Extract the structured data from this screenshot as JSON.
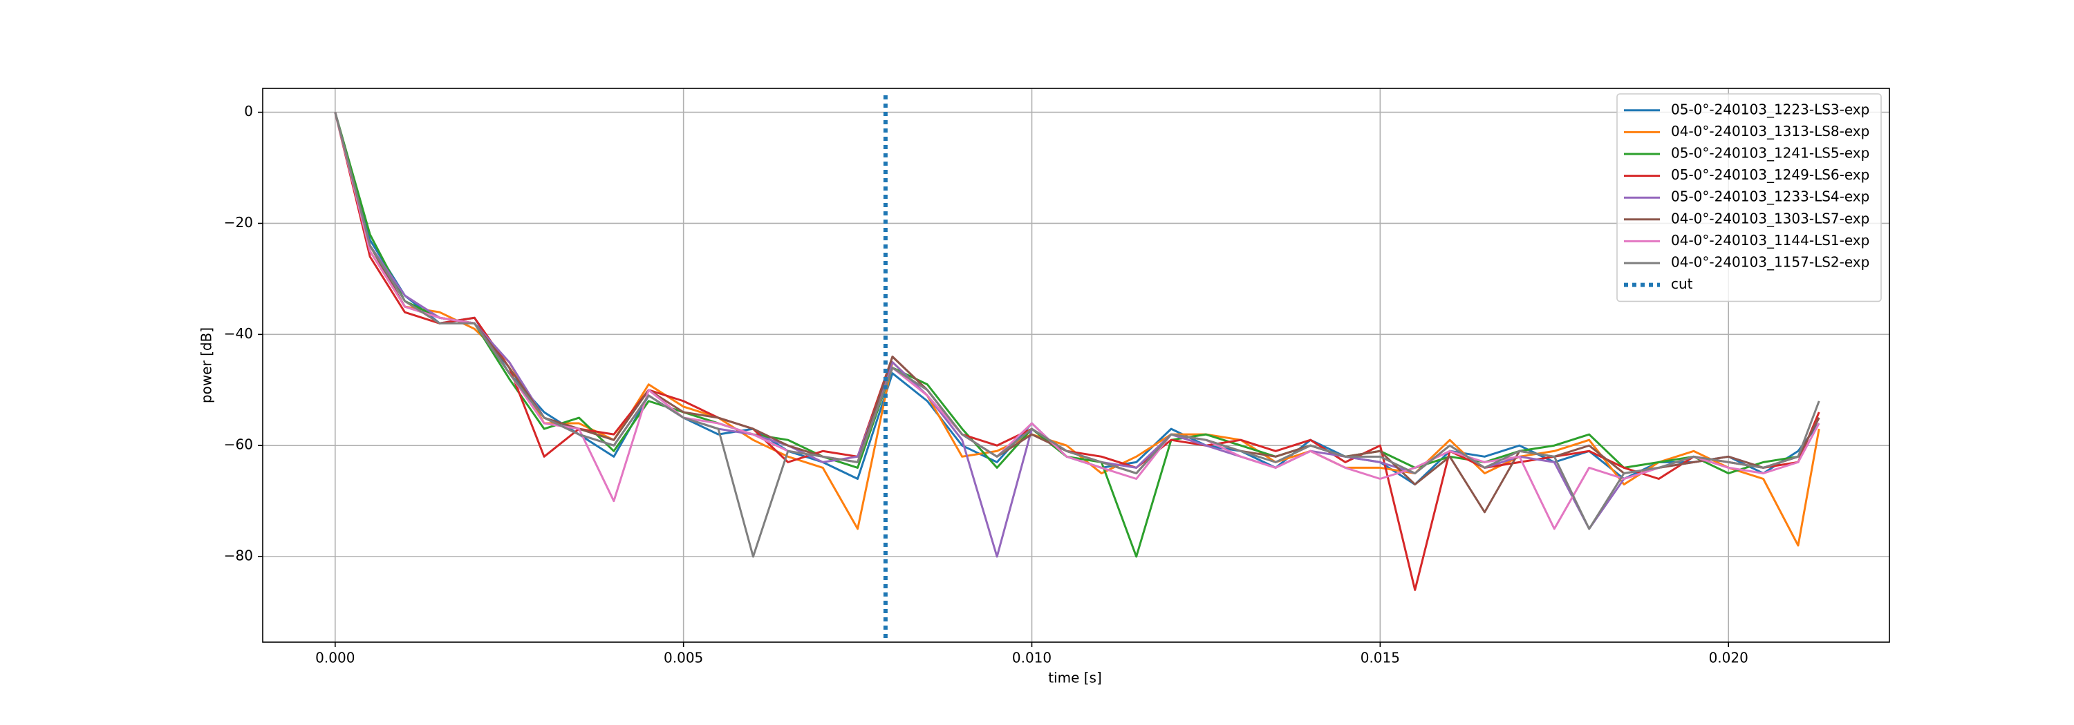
{
  "chart_data": {
    "type": "line",
    "xlabel": "time [s]",
    "ylabel": "power [dB]",
    "x": [
      0,
      0.0005,
      0.001,
      0.0015,
      0.002,
      0.0025,
      0.003,
      0.0035,
      0.004,
      0.0045,
      0.005,
      0.0055,
      0.006,
      0.0065,
      0.007,
      0.0075,
      0.008,
      0.0085,
      0.009,
      0.0095,
      0.01,
      0.0105,
      0.011,
      0.0115,
      0.012,
      0.0125,
      0.013,
      0.0135,
      0.014,
      0.0145,
      0.015,
      0.0155,
      0.016,
      0.0165,
      0.017,
      0.0175,
      0.018,
      0.0185,
      0.019,
      0.0195,
      0.02,
      0.0205,
      0.021,
      0.0213
    ],
    "series": [
      {
        "name": "05-0°-240103_1223-LS3-exp",
        "color": "#1f77b4",
        "values": [
          0,
          -23,
          -33,
          -38,
          -37,
          -47,
          -54,
          -58,
          -62,
          -51,
          -55,
          -58,
          -57,
          -61,
          -63,
          -66,
          -47,
          -52,
          -60,
          -63,
          -56,
          -62,
          -64,
          -63,
          -57,
          -60,
          -61,
          -64,
          -59,
          -62,
          -63,
          -67,
          -61,
          -62,
          -60,
          -63,
          -61,
          -66,
          -63,
          -63,
          -62,
          -65,
          -61,
          -56
        ]
      },
      {
        "name": "04-0°-240103_1313-LS8-exp",
        "color": "#ff7f0e",
        "values": [
          0,
          -25,
          -35,
          -36,
          -39,
          -45,
          -56,
          -56,
          -59,
          -49,
          -53,
          -55,
          -59,
          -62,
          -64,
          -75,
          -45,
          -51,
          -62,
          -61,
          -58,
          -60,
          -65,
          -62,
          -58,
          -58,
          -59,
          -63,
          -61,
          -64,
          -64,
          -65,
          -59,
          -65,
          -62,
          -61,
          -59,
          -67,
          -63,
          -61,
          -64,
          -66,
          -78,
          -57
        ]
      },
      {
        "name": "05-0°-240103_1241-LS5-exp",
        "color": "#2ca02c",
        "values": [
          0,
          -22,
          -34,
          -37,
          -38,
          -48,
          -57,
          -55,
          -61,
          -52,
          -54,
          -56,
          -58,
          -59,
          -62,
          -64,
          -46,
          -49,
          -57,
          -64,
          -57,
          -62,
          -63,
          -80,
          -59,
          -58,
          -60,
          -62,
          -60,
          -62,
          -61,
          -64,
          -62,
          -63,
          -61,
          -60,
          -58,
          -64,
          -63,
          -62,
          -65,
          -63,
          -62,
          -55
        ]
      },
      {
        "name": "05-0°-240103_1249-LS6-exp",
        "color": "#d62728",
        "values": [
          0,
          -26,
          -36,
          -38,
          -37,
          -46,
          -62,
          -57,
          -58,
          -50,
          -52,
          -55,
          -57,
          -63,
          -61,
          -62,
          -44,
          -50,
          -58,
          -60,
          -57,
          -61,
          -62,
          -64,
          -59,
          -60,
          -59,
          -61,
          -59,
          -63,
          -60,
          -86,
          -61,
          -64,
          -63,
          -62,
          -61,
          -64,
          -66,
          -62,
          -63,
          -64,
          -63,
          -54
        ]
      },
      {
        "name": "05-0°-240103_1233-LS4-exp",
        "color": "#9467bd",
        "values": [
          0,
          -24,
          -33,
          -37,
          -38,
          -45,
          -55,
          -58,
          -60,
          -51,
          -55,
          -57,
          -58,
          -60,
          -63,
          -62,
          -45,
          -51,
          -59,
          -80,
          -57,
          -61,
          -63,
          -64,
          -58,
          -60,
          -62,
          -64,
          -61,
          -62,
          -63,
          -65,
          -60,
          -64,
          -62,
          -63,
          -75,
          -66,
          -64,
          -63,
          -62,
          -64,
          -62,
          -55
        ]
      },
      {
        "name": "04-0°-240103_1303-LS7-exp",
        "color": "#8c564b",
        "values": [
          0,
          -24,
          -35,
          -37,
          -38,
          -46,
          -55,
          -57,
          -59,
          -50,
          -54,
          -55,
          -57,
          -60,
          -62,
          -63,
          -44,
          -50,
          -58,
          -62,
          -58,
          -61,
          -63,
          -65,
          -58,
          -59,
          -61,
          -62,
          -60,
          -62,
          -61,
          -67,
          -62,
          -72,
          -61,
          -62,
          -60,
          -65,
          -64,
          -63,
          -62,
          -64,
          -62,
          -55
        ]
      },
      {
        "name": "04-0°-240103_1144-LS1-exp",
        "color": "#e377c2",
        "values": [
          0,
          -25,
          -35,
          -37,
          -38,
          -47,
          -56,
          -57,
          -70,
          -50,
          -55,
          -56,
          -58,
          -61,
          -62,
          -63,
          -46,
          -51,
          -58,
          -62,
          -56,
          -62,
          -64,
          -66,
          -58,
          -59,
          -62,
          -64,
          -61,
          -64,
          -66,
          -64,
          -61,
          -63,
          -62,
          -75,
          -64,
          -66,
          -64,
          -62,
          -64,
          -65,
          -63,
          -56
        ]
      },
      {
        "name": "04-0°-240103_1157-LS2-exp",
        "color": "#7f7f7f",
        "values": [
          0,
          -24,
          -34,
          -38,
          -38,
          -47,
          -55,
          -58,
          -60,
          -51,
          -55,
          -57,
          -80,
          -61,
          -62,
          -63,
          -46,
          -50,
          -58,
          -62,
          -57,
          -61,
          -63,
          -65,
          -58,
          -59,
          -61,
          -63,
          -60,
          -62,
          -62,
          -65,
          -60,
          -64,
          -61,
          -62,
          -75,
          -65,
          -64,
          -62,
          -63,
          -64,
          -62,
          -52
        ]
      }
    ],
    "cut": {
      "name": "cut",
      "x": 0.0079,
      "color": "#1f77b4"
    },
    "xlim": [
      -0.00104,
      0.02231
    ],
    "ylim": [
      -95.4,
      4.3
    ],
    "xticks": [
      {
        "value": 0,
        "label": "0.000"
      },
      0.005,
      {
        "value": 0.01,
        "label": "0.010"
      },
      0.015,
      {
        "value": 0.02,
        "label": "0.020"
      }
    ],
    "yticks": [
      0,
      {
        "value": -20,
        "label": "−20"
      },
      {
        "value": -40,
        "label": "−40"
      },
      {
        "value": -60,
        "label": "−60"
      },
      {
        "value": -80,
        "label": "−80"
      }
    ],
    "grid": true,
    "legend": "upper-right"
  }
}
